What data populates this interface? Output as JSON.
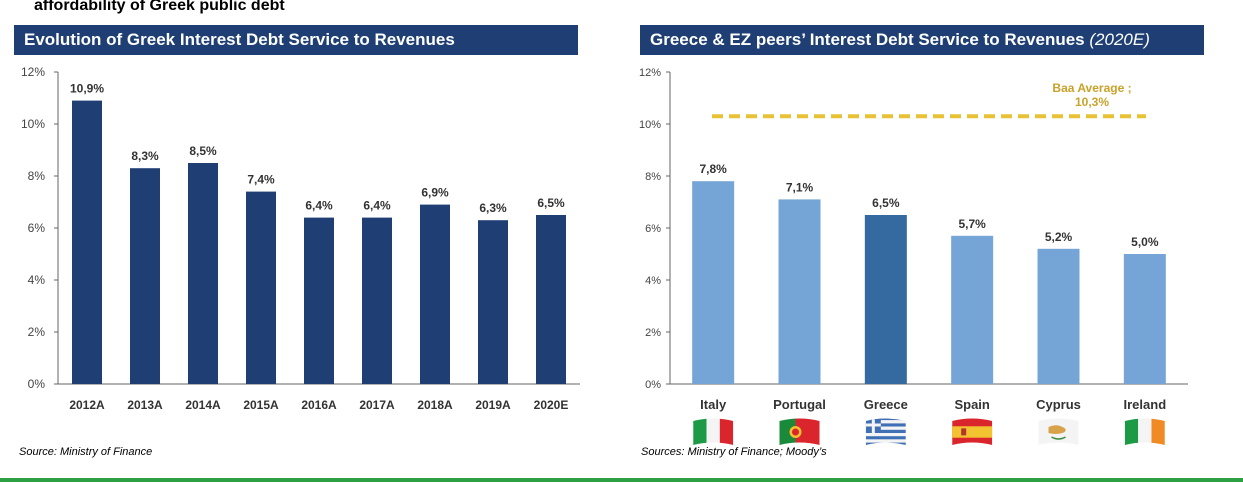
{
  "page_title": "affordability of Greek public debt",
  "colors": {
    "banner_bg": "#1f3f74",
    "left_bar": "#1f3f74",
    "right_bar": "#75a5d6",
    "greece_bar": "#346aa0",
    "baa_line": "#e8c234",
    "rule": "#2ea043"
  },
  "chart_data": [
    {
      "type": "bar",
      "title": "Evolution of Greek Interest Debt Service to Revenues",
      "categories": [
        "2012A",
        "2013A",
        "2014A",
        "2015A",
        "2016A",
        "2017A",
        "2018A",
        "2019A",
        "2020E"
      ],
      "values": [
        10.9,
        8.3,
        8.5,
        7.4,
        6.4,
        6.4,
        6.9,
        6.3,
        6.5
      ],
      "labels": [
        "10,9%",
        "8,3%",
        "8,5%",
        "7,4%",
        "6,4%",
        "6,4%",
        "6,9%",
        "6,3%",
        "6,5%"
      ],
      "yticks": [
        "0%",
        "2%",
        "4%",
        "6%",
        "8%",
        "10%",
        "12%"
      ],
      "ylim": [
        0,
        12
      ],
      "xlabel": "",
      "ylabel": "",
      "source": "Source: Ministry of Finance"
    },
    {
      "type": "bar",
      "title": "Greece & EZ peers’ Interest Debt Service to Revenues",
      "title_suffix": "(2020E)",
      "categories": [
        "Italy",
        "Portugal",
        "Greece",
        "Spain",
        "Cyprus",
        "Ireland"
      ],
      "values": [
        7.8,
        7.1,
        6.5,
        5.7,
        5.2,
        5.0
      ],
      "labels": [
        "7,8%",
        "7,1%",
        "6,5%",
        "5,7%",
        "5,2%",
        "5,0%"
      ],
      "flags": [
        "italy-flag-icon",
        "portugal-flag-icon",
        "greece-flag-icon",
        "spain-flag-icon",
        "cyprus-flag-icon",
        "ireland-flag-icon"
      ],
      "highlight": "Greece",
      "yticks": [
        "0%",
        "2%",
        "4%",
        "6%",
        "8%",
        "10%",
        "12%"
      ],
      "ylim": [
        0,
        12
      ],
      "reference_line": {
        "value": 10.3,
        "label_line1": "Baa Average ;",
        "label_line2": "10,3%"
      },
      "xlabel": "",
      "ylabel": "",
      "source": "Sources: Ministry of Finance; Moody’s"
    }
  ]
}
